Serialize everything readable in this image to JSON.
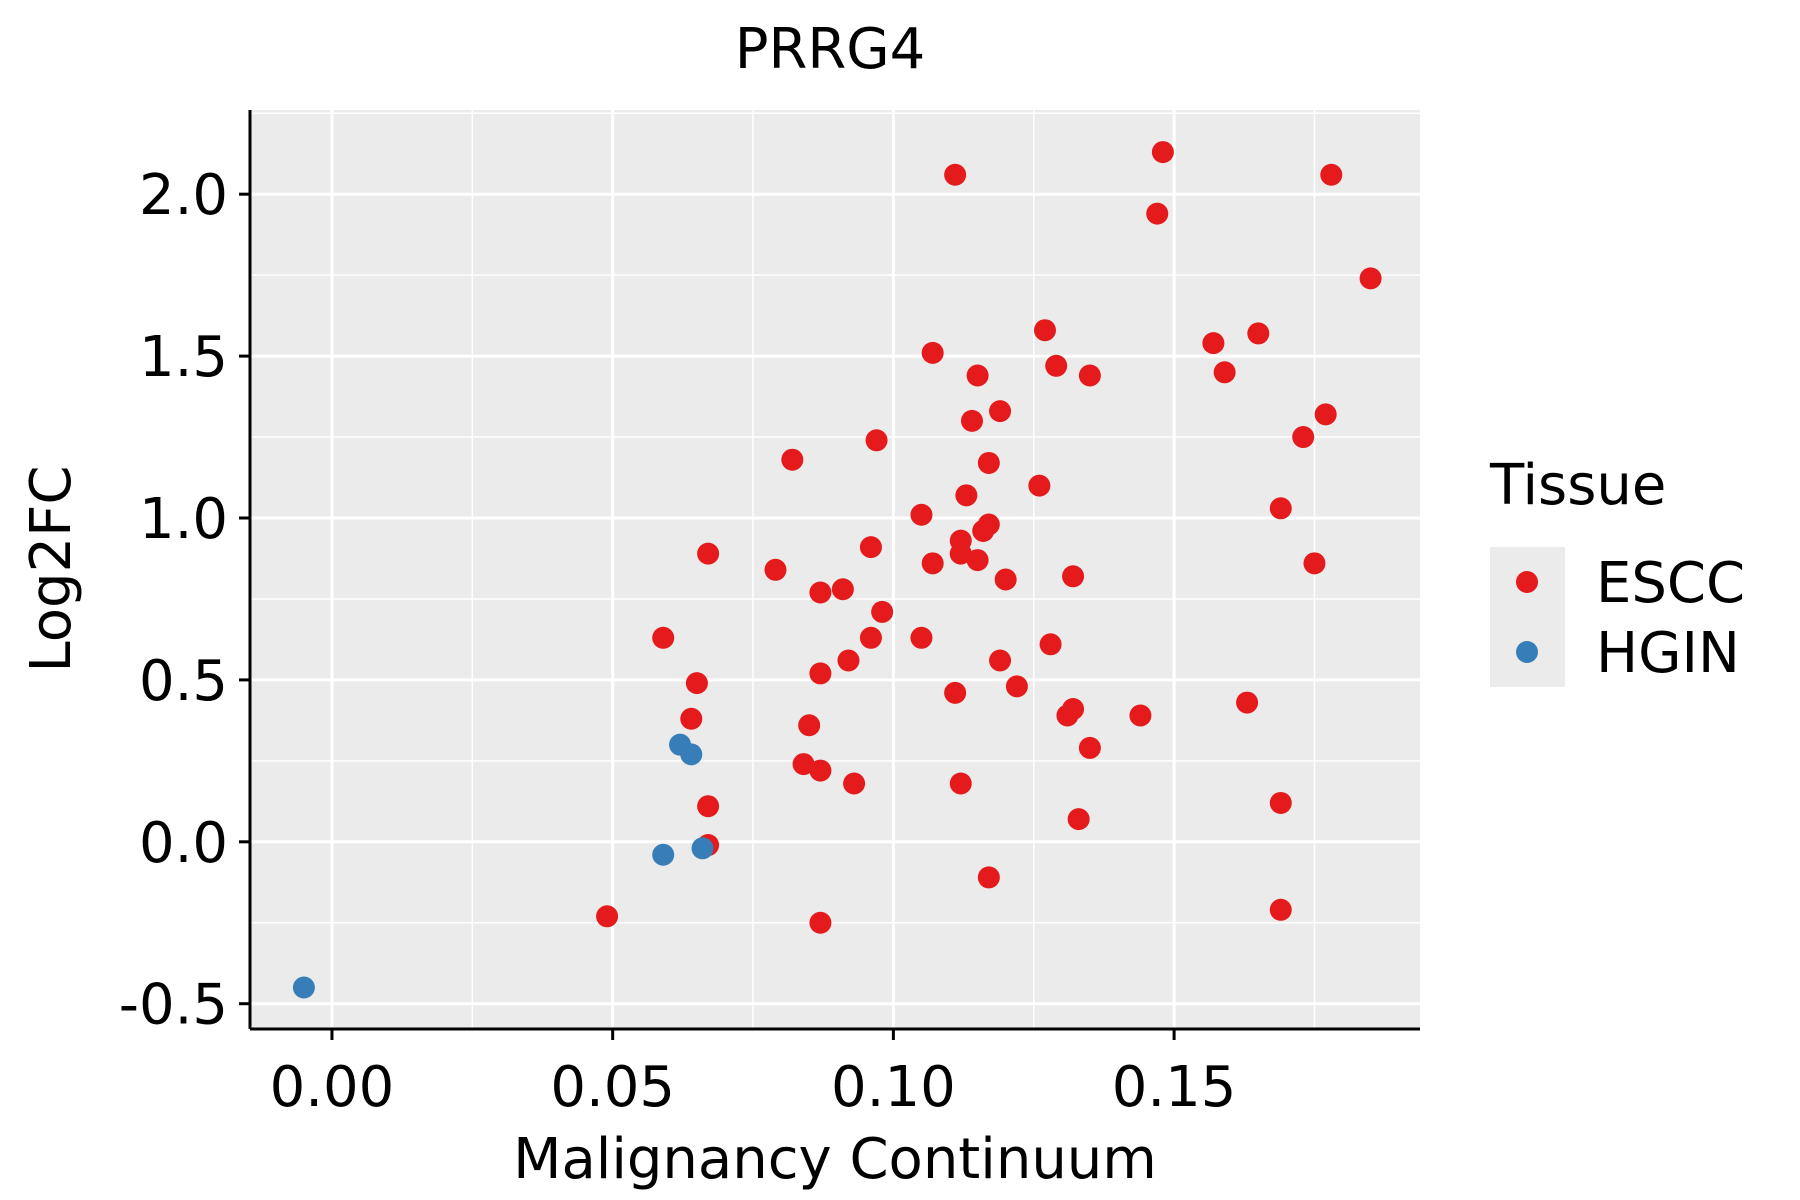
{
  "chart_data": {
    "type": "scatter",
    "title": "PRRG4",
    "xlabel": "Malignancy Continuum",
    "ylabel": "Log2FC",
    "xlim": [
      -0.0146,
      0.1938
    ],
    "ylim": [
      -0.575,
      2.26
    ],
    "x_ticks": [
      0.0,
      0.05,
      0.1,
      0.15
    ],
    "x_tick_labels": [
      "0.00",
      "0.05",
      "0.10",
      "0.15"
    ],
    "y_ticks": [
      -0.5,
      0.0,
      0.5,
      1.0,
      1.5,
      2.0
    ],
    "y_tick_labels": [
      "-0.5",
      "0.0",
      "0.5",
      "1.0",
      "1.5",
      "2.0"
    ],
    "grid": true,
    "legend": {
      "title": "Tissue",
      "placement": "right",
      "entries": [
        {
          "name": "ESCC",
          "color": "#E41A1C"
        },
        {
          "name": "HGIN",
          "color": "#377EB8"
        }
      ]
    },
    "series": [
      {
        "name": "ESCC",
        "color": "#E41A1C",
        "points": [
          [
            0.111,
            2.06
          ],
          [
            0.148,
            2.13
          ],
          [
            0.178,
            2.06
          ],
          [
            0.147,
            1.94
          ],
          [
            0.185,
            1.74
          ],
          [
            0.127,
            1.58
          ],
          [
            0.157,
            1.54
          ],
          [
            0.165,
            1.57
          ],
          [
            0.107,
            1.51
          ],
          [
            0.129,
            1.47
          ],
          [
            0.159,
            1.45
          ],
          [
            0.115,
            1.44
          ],
          [
            0.135,
            1.44
          ],
          [
            0.119,
            1.33
          ],
          [
            0.114,
            1.3
          ],
          [
            0.177,
            1.32
          ],
          [
            0.097,
            1.24
          ],
          [
            0.173,
            1.25
          ],
          [
            0.082,
            1.18
          ],
          [
            0.117,
            1.17
          ],
          [
            0.126,
            1.1
          ],
          [
            0.113,
            1.07
          ],
          [
            0.105,
            1.01
          ],
          [
            0.169,
            1.03
          ],
          [
            0.117,
            0.98
          ],
          [
            0.116,
            0.96
          ],
          [
            0.112,
            0.93
          ],
          [
            0.096,
            0.91
          ],
          [
            0.067,
            0.89
          ],
          [
            0.112,
            0.89
          ],
          [
            0.107,
            0.86
          ],
          [
            0.115,
            0.87
          ],
          [
            0.175,
            0.86
          ],
          [
            0.079,
            0.84
          ],
          [
            0.132,
            0.82
          ],
          [
            0.12,
            0.81
          ],
          [
            0.091,
            0.78
          ],
          [
            0.087,
            0.77
          ],
          [
            0.098,
            0.71
          ],
          [
            0.059,
            0.63
          ],
          [
            0.096,
            0.63
          ],
          [
            0.105,
            0.63
          ],
          [
            0.128,
            0.61
          ],
          [
            0.092,
            0.56
          ],
          [
            0.119,
            0.56
          ],
          [
            0.087,
            0.52
          ],
          [
            0.065,
            0.49
          ],
          [
            0.122,
            0.48
          ],
          [
            0.111,
            0.46
          ],
          [
            0.163,
            0.43
          ],
          [
            0.132,
            0.41
          ],
          [
            0.131,
            0.39
          ],
          [
            0.144,
            0.39
          ],
          [
            0.064,
            0.38
          ],
          [
            0.085,
            0.36
          ],
          [
            0.135,
            0.29
          ],
          [
            0.084,
            0.24
          ],
          [
            0.087,
            0.22
          ],
          [
            0.093,
            0.18
          ],
          [
            0.112,
            0.18
          ],
          [
            0.067,
            0.11
          ],
          [
            0.169,
            0.12
          ],
          [
            0.133,
            0.07
          ],
          [
            0.067,
            -0.01
          ],
          [
            0.117,
            -0.11
          ],
          [
            0.049,
            -0.23
          ],
          [
            0.169,
            -0.21
          ],
          [
            0.087,
            -0.25
          ]
        ]
      },
      {
        "name": "HGIN",
        "color": "#377EB8",
        "points": [
          [
            0.062,
            0.3
          ],
          [
            0.064,
            0.27
          ],
          [
            0.066,
            -0.02
          ],
          [
            0.059,
            -0.04
          ],
          [
            -0.005,
            -0.45
          ]
        ]
      }
    ]
  }
}
